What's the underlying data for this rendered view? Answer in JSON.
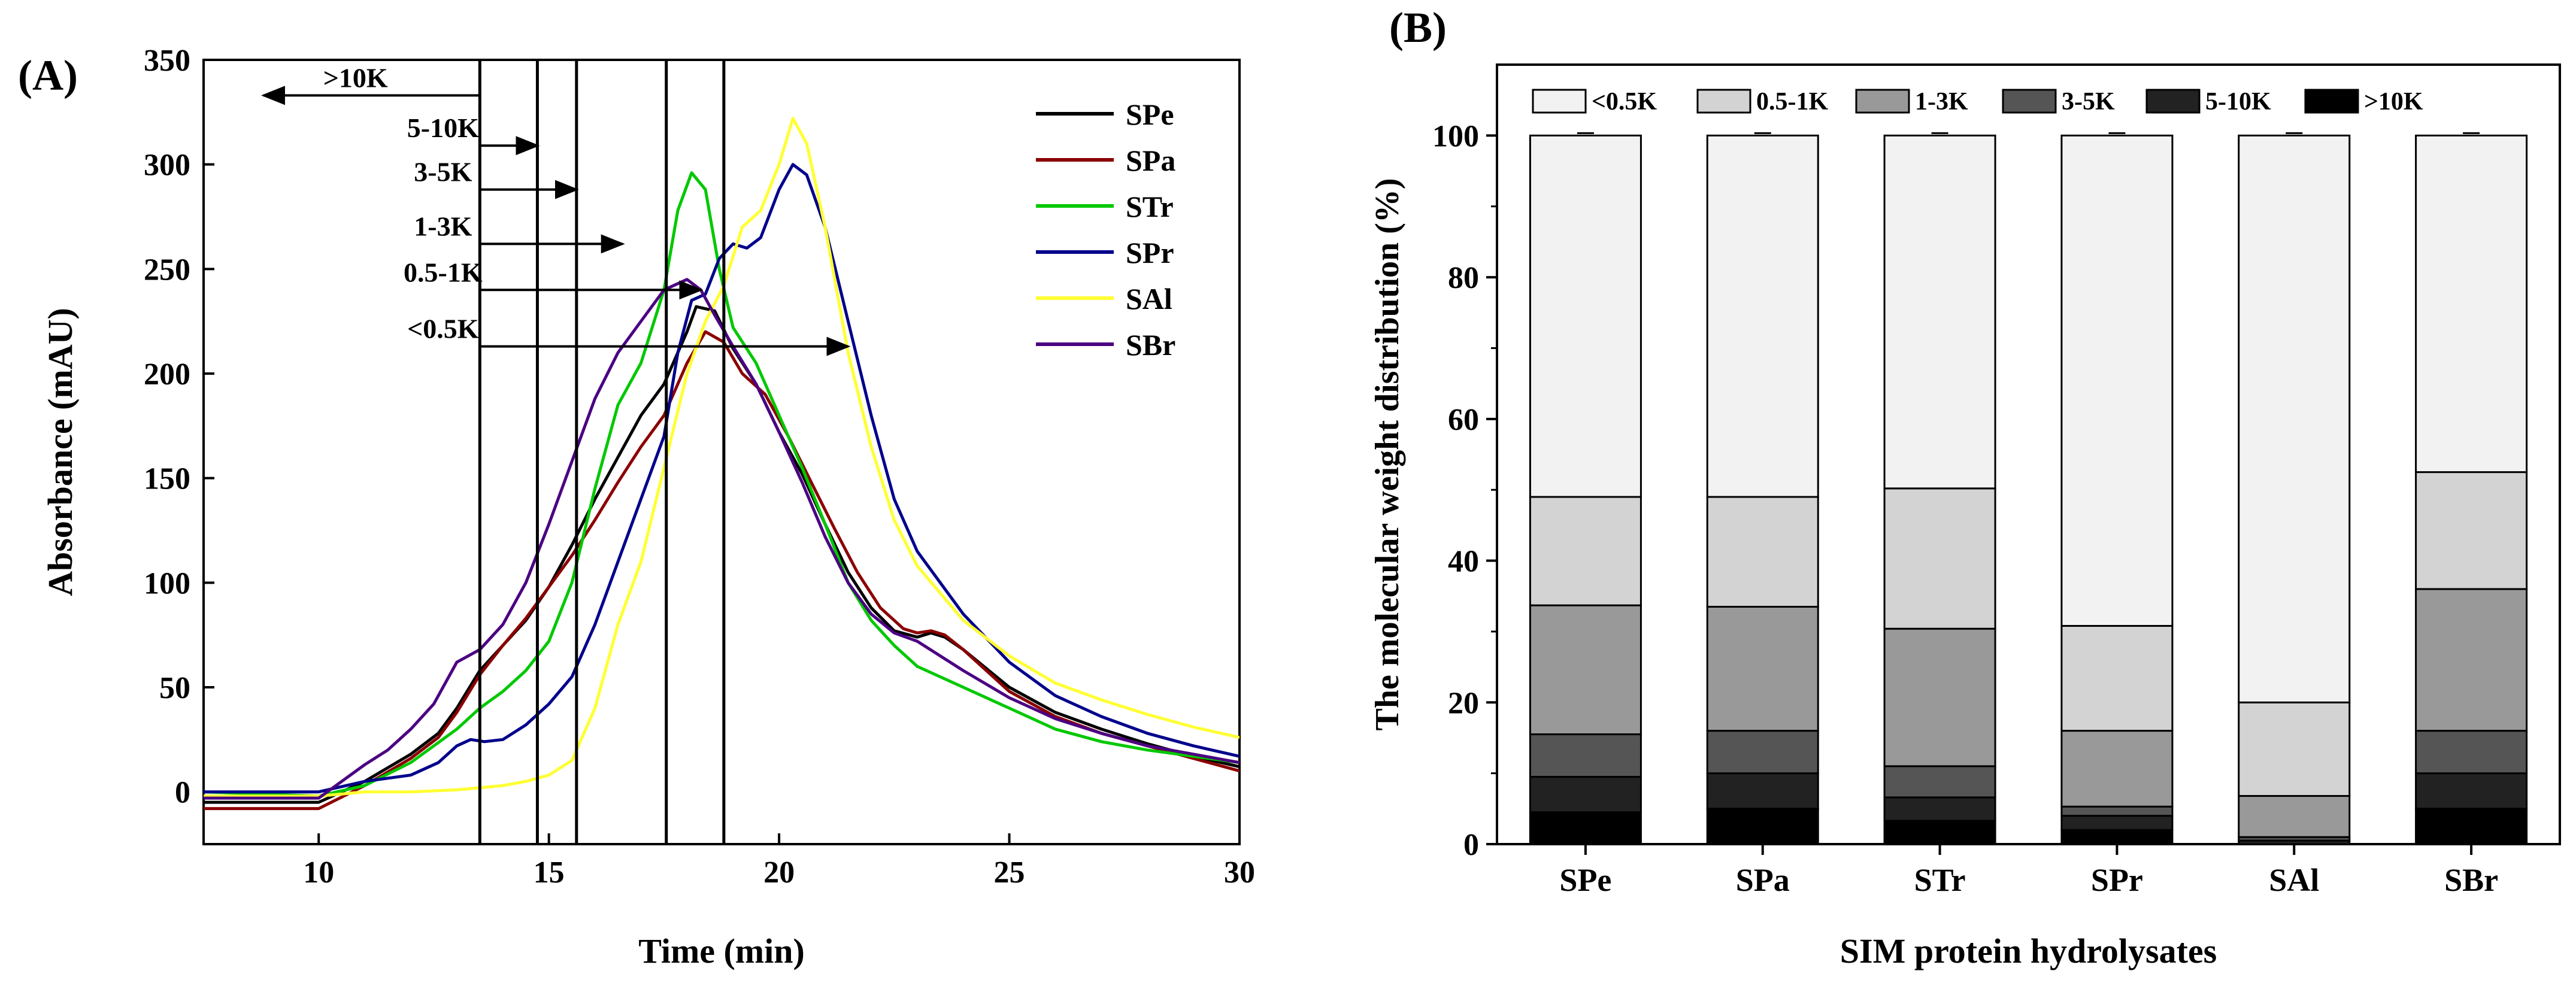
{
  "panel_a_label": "(A)",
  "panel_b_label": "(B)",
  "chart_data": [
    {
      "type": "line",
      "panel": "A",
      "xlabel": "Time (min)",
      "ylabel": "Absorbance (mAU)",
      "xlim": [
        7.5,
        30
      ],
      "ylim": [
        -25,
        350
      ],
      "xticks": [
        10,
        15,
        20,
        25,
        30
      ],
      "yticks": [
        0,
        50,
        100,
        150,
        200,
        250,
        300,
        350
      ],
      "legend_position": "top-right",
      "vertical_lines": [
        13.5,
        14.75,
        15.6,
        17.55,
        18.8
      ],
      "annotations": [
        {
          "label": ">10K",
          "y": 333,
          "x_from": 13.5,
          "x_to": 8.8,
          "text_x": 10.8
        },
        {
          "label": "5-10K",
          "y": 309,
          "x_from": 13.5,
          "x_to": 14.75,
          "text_x": 12.7
        },
        {
          "label": "3-5K",
          "y": 288,
          "x_from": 13.5,
          "x_to": 15.6,
          "text_x": 12.7
        },
        {
          "label": "1-3K",
          "y": 262,
          "x_from": 13.5,
          "x_to": 16.6,
          "text_x": 12.7
        },
        {
          "label": "0.5-1K",
          "y": 240,
          "x_from": 13.5,
          "x_to": 18.3,
          "text_x": 12.7
        },
        {
          "label": "<0.5K",
          "y": 213,
          "x_from": 13.5,
          "x_to": 21.5,
          "text_x": 12.7
        }
      ],
      "series": [
        {
          "name": "SPe",
          "color": "#000000",
          "x": [
            7.5,
            10,
            11,
            12,
            12.6,
            13,
            13.5,
            14,
            14.5,
            15,
            15.5,
            16,
            16.5,
            17,
            17.5,
            18,
            18.2,
            18.6,
            19,
            19.5,
            20,
            20.5,
            21,
            21.5,
            22,
            22.5,
            23,
            23.3,
            23.6,
            24,
            25,
            26,
            27,
            28,
            29,
            30
          ],
          "y": [
            -5,
            -5,
            5,
            18,
            28,
            40,
            58,
            70,
            82,
            98,
            118,
            140,
            160,
            180,
            195,
            220,
            232,
            230,
            212,
            195,
            172,
            152,
            128,
            105,
            88,
            77,
            74,
            76,
            74,
            68,
            50,
            38,
            30,
            23,
            17,
            12
          ]
        },
        {
          "name": "SPa",
          "color": "#8b0000",
          "x": [
            7.5,
            10,
            11,
            12,
            12.6,
            13,
            13.5,
            14,
            14.5,
            15,
            15.5,
            16,
            16.5,
            17,
            17.5,
            18,
            18.4,
            18.8,
            19.2,
            19.7,
            20.2,
            20.7,
            21.2,
            21.7,
            22.2,
            22.7,
            23,
            23.3,
            23.6,
            24,
            25,
            26,
            27,
            28,
            29,
            30
          ],
          "y": [
            -8,
            -8,
            3,
            16,
            26,
            38,
            56,
            70,
            83,
            98,
            113,
            130,
            148,
            165,
            180,
            205,
            220,
            215,
            200,
            190,
            170,
            148,
            126,
            105,
            88,
            78,
            76,
            77,
            75,
            68,
            48,
            36,
            28,
            22,
            16,
            10
          ]
        },
        {
          "name": "STr",
          "color": "#00c800",
          "x": [
            7.5,
            10,
            11,
            12,
            13,
            13.5,
            14,
            14.5,
            15,
            15.5,
            16,
            16.5,
            17,
            17.5,
            17.8,
            18.1,
            18.4,
            18.7,
            19,
            19.5,
            20,
            20.5,
            21,
            21.5,
            22,
            22.5,
            23,
            24,
            25,
            26,
            27,
            28,
            29,
            30
          ],
          "y": [
            0,
            -2,
            3,
            14,
            30,
            40,
            48,
            58,
            72,
            100,
            145,
            185,
            205,
            240,
            278,
            296,
            288,
            250,
            222,
            205,
            180,
            155,
            128,
            100,
            82,
            70,
            60,
            50,
            40,
            30,
            24,
            20,
            17,
            14
          ]
        },
        {
          "name": "SPr",
          "color": "#00008b",
          "x": [
            7.5,
            10,
            11,
            12,
            12.6,
            13,
            13.3,
            13.6,
            14,
            14.5,
            15,
            15.5,
            16,
            16.5,
            17,
            17.5,
            17.8,
            18.1,
            18.4,
            18.7,
            19,
            19.3,
            19.6,
            20,
            20.3,
            20.6,
            21,
            21.5,
            22,
            22.5,
            23,
            24,
            25,
            26,
            27,
            28,
            29,
            30
          ],
          "y": [
            0,
            0,
            5,
            8,
            14,
            22,
            25,
            24,
            25,
            32,
            42,
            55,
            80,
            110,
            140,
            170,
            210,
            235,
            238,
            255,
            262,
            260,
            265,
            288,
            300,
            295,
            270,
            225,
            180,
            140,
            115,
            85,
            62,
            46,
            36,
            28,
            22,
            17
          ]
        },
        {
          "name": "SAl",
          "color": "#ffff33",
          "x": [
            7.5,
            10,
            11,
            12,
            13,
            14,
            14.5,
            15,
            15.5,
            16,
            16.5,
            17,
            17.5,
            18,
            18.4,
            18.8,
            19.2,
            19.6,
            20,
            20.3,
            20.6,
            21,
            21.5,
            22,
            22.5,
            23,
            24,
            25,
            26,
            27,
            28,
            29,
            30
          ],
          "y": [
            -2,
            -2,
            0,
            0,
            1,
            3,
            5,
            8,
            15,
            40,
            80,
            110,
            155,
            200,
            225,
            242,
            270,
            278,
            300,
            322,
            310,
            270,
            210,
            165,
            130,
            108,
            82,
            65,
            52,
            44,
            37,
            31,
            26
          ]
        },
        {
          "name": "SBr",
          "color": "#4b0082",
          "x": [
            7.5,
            10,
            11,
            11.5,
            12,
            12.5,
            13,
            13.5,
            14,
            14.5,
            15,
            15.5,
            16,
            16.5,
            17,
            17.5,
            18,
            18.3,
            18.6,
            19,
            19.5,
            20,
            20.5,
            21,
            21.5,
            22,
            22.5,
            23,
            24,
            25,
            26,
            27,
            28,
            29,
            30
          ],
          "y": [
            -3,
            -3,
            13,
            20,
            30,
            42,
            62,
            68,
            80,
            100,
            128,
            158,
            188,
            210,
            225,
            240,
            245,
            240,
            228,
            213,
            195,
            172,
            148,
            122,
            100,
            85,
            76,
            72,
            58,
            45,
            35,
            28,
            22,
            18,
            14
          ]
        }
      ]
    },
    {
      "type": "bar",
      "stacked": true,
      "panel": "B",
      "xlabel": "SIM protein hydrolysates",
      "ylabel": "The molecular weight distribution (%)",
      "ylim": [
        0,
        110
      ],
      "yticks": [
        0,
        20,
        40,
        60,
        80,
        100
      ],
      "legend_position": "top",
      "categories": [
        "SPe",
        "SPa",
        "STr",
        "SPr",
        "SAl",
        "SBr"
      ],
      "series": [
        {
          "name": ">10K",
          "color": "#000000",
          "values": [
            4.5,
            5.0,
            3.3,
            2.0,
            0.0,
            5.0
          ]
        },
        {
          "name": "5-10K",
          "color": "#222222",
          "values": [
            5.0,
            5.0,
            3.3,
            2.0,
            0.5,
            5.0
          ]
        },
        {
          "name": "3-5K",
          "color": "#555555",
          "values": [
            6.0,
            6.0,
            4.4,
            1.3,
            0.5,
            6.0
          ]
        },
        {
          "name": "1-3K",
          "color": "#999999",
          "values": [
            18.2,
            17.5,
            19.4,
            10.7,
            5.8,
            20.0
          ]
        },
        {
          "name": "0.5-1K",
          "color": "#d3d3d3",
          "values": [
            15.3,
            15.5,
            19.8,
            14.8,
            13.2,
            16.5
          ]
        },
        {
          "name": "<0.5K",
          "color": "#f2f2f2",
          "values": [
            51.0,
            51.0,
            49.8,
            69.2,
            80.0,
            47.5
          ]
        }
      ]
    }
  ]
}
